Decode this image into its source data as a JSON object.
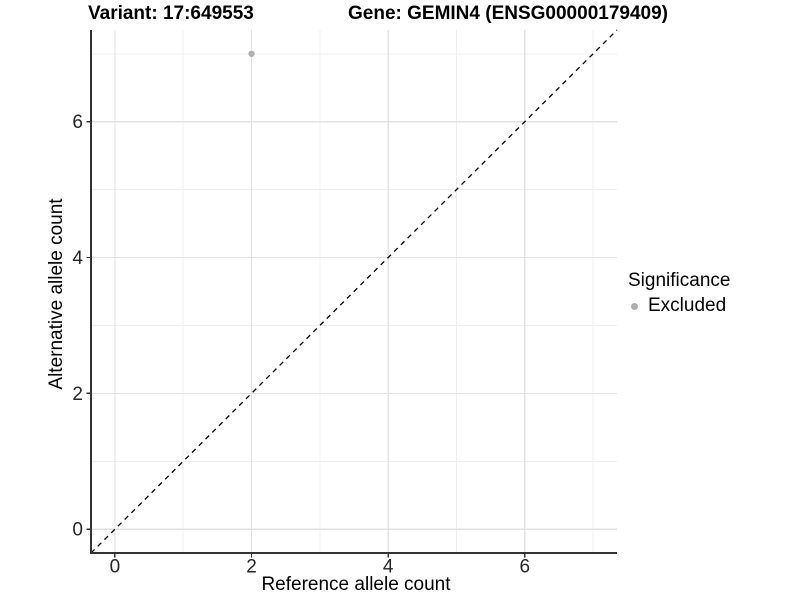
{
  "title": {
    "variant_label": "Variant: 17:649553",
    "gene_label": "Gene: GEMIN4 (ENSG00000179409)"
  },
  "x_axis": {
    "label": "Reference allele count"
  },
  "y_axis": {
    "label": "Alternative allele count"
  },
  "legend": {
    "title": "Significance",
    "items": [
      {
        "label": "Excluded",
        "color": "#b0b0b0"
      }
    ]
  },
  "chart_data": {
    "type": "scatter",
    "title": "Variant: 17:649553    Gene: GEMIN4 (ENSG00000179409)",
    "xlabel": "Reference allele count",
    "ylabel": "Alternative allele count",
    "xlim": [
      -0.35,
      7.35
    ],
    "ylim": [
      -0.35,
      7.35
    ],
    "x_ticks": [
      0,
      2,
      4,
      6
    ],
    "y_ticks": [
      0,
      2,
      4,
      6
    ],
    "x_minor_ticks": [
      1,
      3,
      5,
      7
    ],
    "y_minor_ticks": [
      1,
      3,
      5,
      7
    ],
    "grid": true,
    "legend_position": "right",
    "series": [
      {
        "name": "Excluded",
        "color": "#b0b0b0",
        "points": [
          {
            "x": 2,
            "y": 7
          }
        ]
      }
    ],
    "reference_line": {
      "type": "identity",
      "slope": 1,
      "intercept": 0,
      "style": "dashed",
      "color": "#000000"
    }
  },
  "colors": {
    "background": "#ffffff",
    "grid_major": "#e2e2e2",
    "grid_minor": "#efefef",
    "axis_line": "#333333",
    "tick_label": "#262626",
    "point": "#b0b0b0",
    "reference_line": "#000000"
  }
}
